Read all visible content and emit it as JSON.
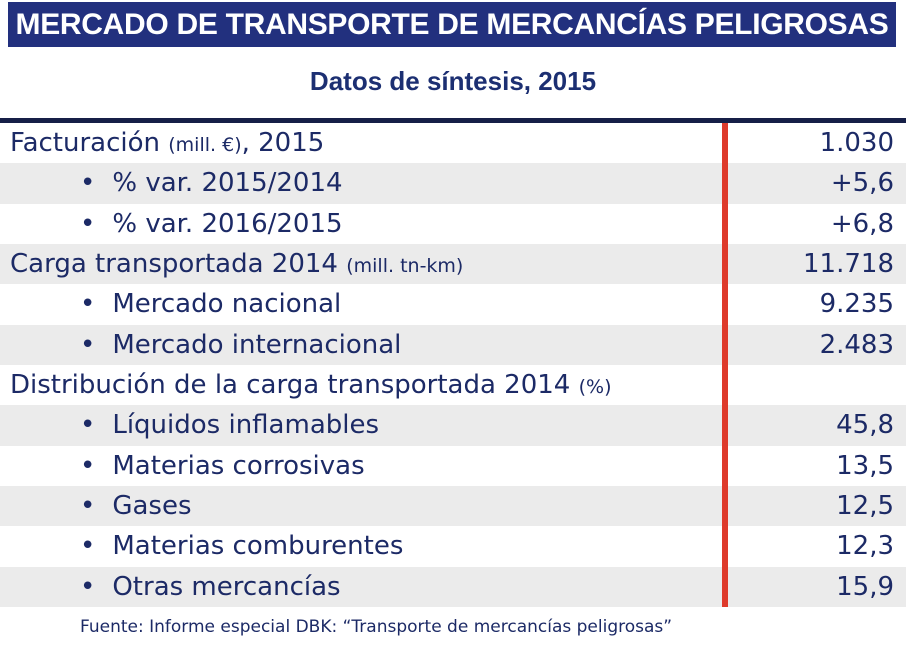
{
  "header": {
    "title": "MERCADO DE TRANSPORTE DE MERCANCÍAS PELIGROSAS"
  },
  "subtitle": "Datos de síntesis, 2015",
  "table": {
    "bullet": "•",
    "rows": [
      {
        "label_pre": "Facturación ",
        "label_small": "(mill. €)",
        "label_post": ", 2015",
        "value": "1.030",
        "level": 0
      },
      {
        "label_pre": "% var. 2015/2014",
        "value": "+5,6",
        "level": 1
      },
      {
        "label_pre": "% var. 2016/2015",
        "value": "+6,8",
        "level": 1
      },
      {
        "label_pre": "Carga transportada 2014 ",
        "label_small": "(mill. tn-km)",
        "value": "11.718",
        "level": 0
      },
      {
        "label_pre": "Mercado nacional",
        "value": "9.235",
        "level": 1
      },
      {
        "label_pre": "Mercado internacional",
        "value": "2.483",
        "level": 1
      },
      {
        "label_pre": "Distribución de la carga transportada 2014 ",
        "label_small": "(%)",
        "value": "",
        "level": 0
      },
      {
        "label_pre": "Líquidos inflamables",
        "value": "45,8",
        "level": 1
      },
      {
        "label_pre": "Materias corrosivas",
        "value": "13,5",
        "level": 1
      },
      {
        "label_pre": "Gases",
        "value": "12,5",
        "level": 1
      },
      {
        "label_pre": "Materias comburentes",
        "value": "12,3",
        "level": 1
      },
      {
        "label_pre": "Otras mercancías",
        "value": "15,9",
        "level": 1
      }
    ]
  },
  "footer": {
    "source": "Fuente: Informe especial DBK: “Transporte de mercancías peligrosas”"
  },
  "colors": {
    "header_bar": "#22307E",
    "table_top_border": "#161F47",
    "text_navy": "#1C2A66",
    "red_divider": "#DE3A2B",
    "row_alt_gray": "#EBEBEB"
  }
}
